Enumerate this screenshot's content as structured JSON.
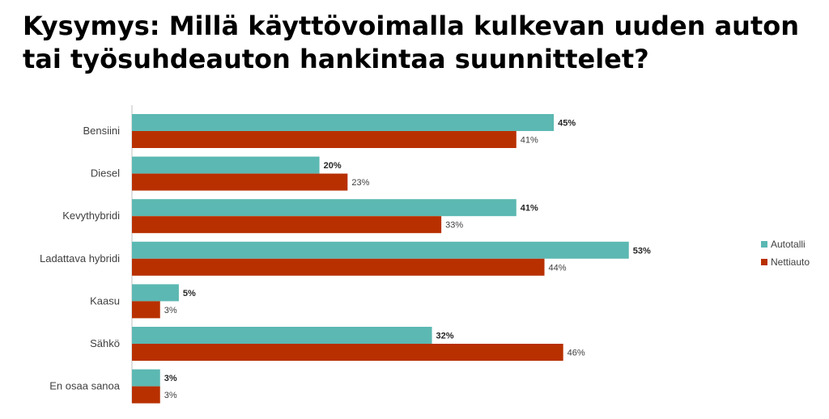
{
  "title": "Kysymys: Millä käyttövoimalla kulkevan uuden auton tai työsuhdeauton hankintaa suunnittelet?",
  "chart_data": {
    "type": "bar",
    "orientation": "horizontal",
    "title": "Kysymys: Millä käyttövoimalla kulkevan uuden auton tai työsuhdeauton hankintaa suunnittelet?",
    "categories": [
      "Bensiini",
      "Diesel",
      "Kevythybridi",
      "Ladattava hybridi",
      "Kaasu",
      "Sähkö",
      "En osaa sanoa"
    ],
    "series": [
      {
        "name": "Autotalli",
        "color": "#5cb8b2",
        "values": [
          45,
          20,
          41,
          53,
          5,
          32,
          3
        ]
      },
      {
        "name": "Nettiauto",
        "color": "#b83000",
        "values": [
          41,
          23,
          33,
          44,
          3,
          46,
          3
        ]
      }
    ],
    "value_suffix": "%",
    "xlabel": "",
    "ylabel": "",
    "xlim": [
      0,
      55
    ],
    "grid": false,
    "legend_position": "right"
  }
}
